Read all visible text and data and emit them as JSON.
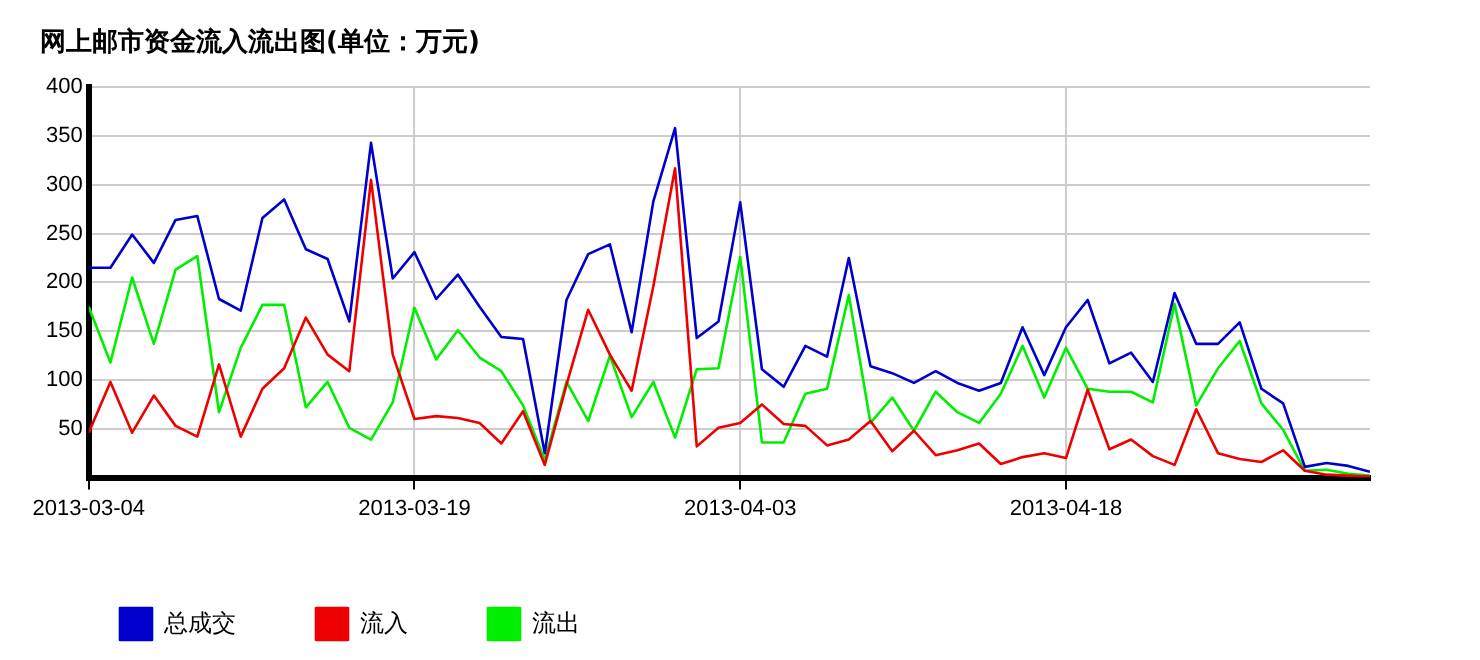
{
  "chart_data": {
    "type": "line",
    "title": "网上邮市资金流入流出图(单位：万元)",
    "x": [
      "2013-03-04",
      "2013-03-05",
      "2013-03-06",
      "2013-03-07",
      "2013-03-08",
      "2013-03-09",
      "2013-03-10",
      "2013-03-11",
      "2013-03-12",
      "2013-03-13",
      "2013-03-14",
      "2013-03-15",
      "2013-03-16",
      "2013-03-17",
      "2013-03-18",
      "2013-03-19",
      "2013-03-20",
      "2013-03-21",
      "2013-03-22",
      "2013-03-23",
      "2013-03-24",
      "2013-03-25",
      "2013-03-26",
      "2013-03-27",
      "2013-03-28",
      "2013-03-29",
      "2013-03-30",
      "2013-03-31",
      "2013-04-01",
      "2013-04-02",
      "2013-04-03",
      "2013-04-04",
      "2013-04-05",
      "2013-04-06",
      "2013-04-07",
      "2013-04-08",
      "2013-04-09",
      "2013-04-10",
      "2013-04-11",
      "2013-04-12",
      "2013-04-13",
      "2013-04-14",
      "2013-04-15",
      "2013-04-16",
      "2013-04-17",
      "2013-04-18",
      "2013-04-19",
      "2013-04-20",
      "2013-04-21",
      "2013-04-22",
      "2013-04-23",
      "2013-04-24",
      "2013-04-25",
      "2013-04-26",
      "2013-04-27",
      "2013-04-28",
      "2013-04-29",
      "2013-04-30",
      "2013-05-01",
      "2013-05-02"
    ],
    "series": [
      {
        "name": "总成交",
        "color": "#0000cc",
        "values": [
          215,
          215,
          249,
          220,
          264,
          268,
          183,
          171,
          266,
          285,
          234,
          224,
          160,
          343,
          204,
          231,
          183,
          208,
          175,
          144,
          142,
          25,
          182,
          229,
          239,
          149,
          283,
          358,
          143,
          160,
          282,
          111,
          93,
          135,
          124,
          225,
          114,
          107,
          97,
          109,
          97,
          89,
          97,
          154,
          105,
          154,
          182,
          117,
          128,
          98,
          189,
          137,
          137,
          159,
          91,
          76,
          11,
          15,
          12,
          6
        ]
      },
      {
        "name": "流入",
        "color": "#ee0000",
        "values": [
          46,
          98,
          46,
          84,
          53,
          42,
          116,
          42,
          91,
          112,
          164,
          126,
          109,
          305,
          126,
          60,
          63,
          61,
          56,
          35,
          68,
          13,
          95,
          172,
          126,
          89,
          196,
          317,
          32,
          51,
          56,
          75,
          55,
          53,
          33,
          39,
          58,
          27,
          48,
          23,
          28,
          35,
          14,
          21,
          25,
          20,
          90,
          29,
          39,
          22,
          13,
          70,
          25,
          19,
          16,
          28,
          7,
          3,
          2,
          1
        ]
      },
      {
        "name": "流出",
        "color": "#00ee00",
        "values": [
          175,
          118,
          205,
          137,
          213,
          227,
          67,
          133,
          177,
          177,
          72,
          98,
          51,
          39,
          77,
          174,
          121,
          151,
          123,
          109,
          74,
          18,
          98,
          58,
          125,
          62,
          98,
          41,
          111,
          112,
          226,
          36,
          36,
          86,
          91,
          187,
          56,
          82,
          48,
          88,
          67,
          56,
          86,
          135,
          82,
          133,
          91,
          88,
          88,
          77,
          178,
          74,
          112,
          140,
          76,
          49,
          7,
          8,
          4,
          2
        ]
      }
    ],
    "xlim": [
      "2013-03-04",
      "2013-05-02"
    ],
    "xticks": [
      "2013-03-04",
      "2013-03-19",
      "2013-04-03",
      "2013-04-18"
    ],
    "ylim": [
      0,
      400
    ],
    "yticks": [
      50,
      100,
      150,
      200,
      250,
      300,
      350,
      400
    ],
    "grid": true,
    "legend": "bottom left",
    "marker": "none",
    "line_style": "solid"
  }
}
